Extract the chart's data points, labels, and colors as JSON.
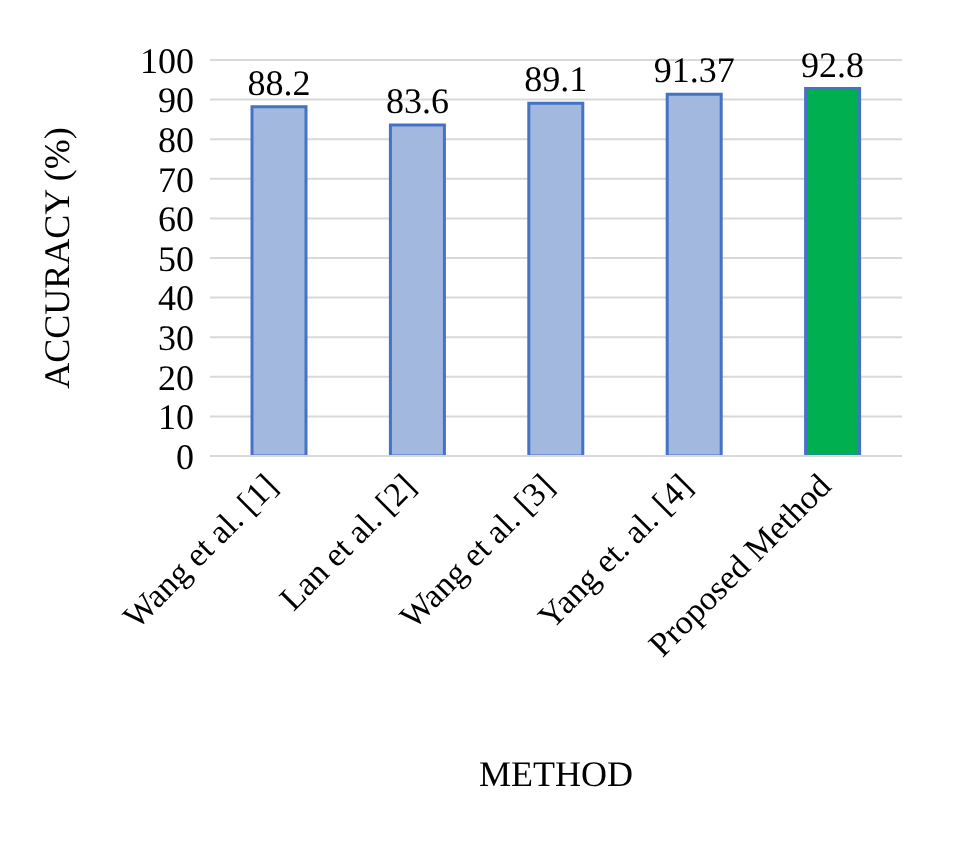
{
  "chart_data": {
    "type": "bar",
    "xlabel": "METHOD",
    "ylabel": "ACCURACY (%)",
    "categories": [
      "Wang et al. [1]",
      "Lan et al. [2]",
      "Wang et al. [3]",
      "Yang et. al. [4]",
      "Proposed Method"
    ],
    "values": [
      88.2,
      83.6,
      89.1,
      91.37,
      92.8
    ],
    "colors": [
      "#a3b8de",
      "#a3b8de",
      "#a3b8de",
      "#a3b8de",
      "#00b050"
    ],
    "ylim": [
      0,
      100
    ],
    "yticks": [
      0,
      10,
      20,
      30,
      40,
      50,
      60,
      70,
      80,
      90,
      100
    ],
    "grid": "y",
    "data_labels": true
  }
}
